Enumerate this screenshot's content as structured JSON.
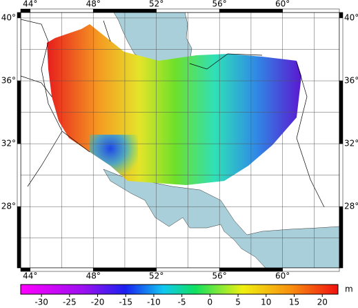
{
  "map": {
    "xlim": [
      43.4,
      63.6
    ],
    "ylim": [
      24.1,
      40.35
    ],
    "xticks": [
      {
        "value": 44,
        "label": "44°"
      },
      {
        "value": 48,
        "label": "48°"
      },
      {
        "value": 52,
        "label": "52°"
      },
      {
        "value": 56,
        "label": "56°"
      },
      {
        "value": 60,
        "label": "60°"
      }
    ],
    "yticks": [
      {
        "value": 28,
        "label": "28°"
      },
      {
        "value": 32,
        "label": "32°"
      },
      {
        "value": 36,
        "label": "36°"
      },
      {
        "value": 40,
        "label": "40°"
      }
    ],
    "colorbar": {
      "lim": [
        -33.7,
        22.8
      ],
      "ticks": [
        -30,
        -25,
        -20,
        -15,
        -10,
        -5,
        0,
        5,
        10,
        15,
        20
      ],
      "unit": "m"
    }
  }
}
